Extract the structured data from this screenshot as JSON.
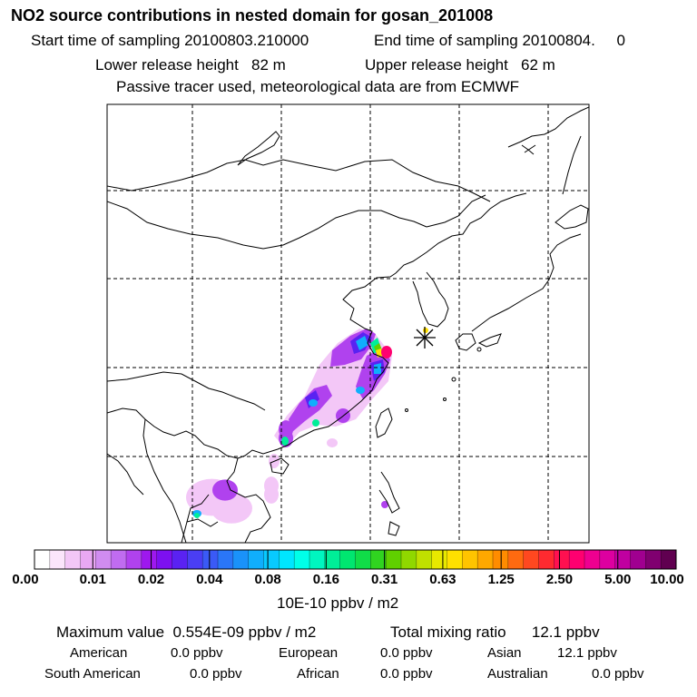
{
  "header": {
    "title": "NO2 source contributions in nested domain for gosan_201008",
    "start_label": "Start time of sampling 20100803.210000",
    "end_label": "End time of sampling 20100804.     0",
    "lower_height": "Lower release height   82 m",
    "upper_height": "Upper release height   62 m",
    "tracer_note": "Passive tracer used, meteorological data are from ECMWF"
  },
  "colorbar": {
    "tick_labels": [
      "0.00",
      "0.01",
      "0.02",
      "0.04",
      "0.08",
      "0.16",
      "0.31",
      "0.63",
      "1.25",
      "2.50",
      "5.00",
      "10.00"
    ],
    "colors": [
      "#ffffff",
      "#fbe5fb",
      "#f3c7f7",
      "#e9a8f3",
      "#d08cf0",
      "#c06cf0",
      "#b042ee",
      "#9e18ee",
      "#7d10f0",
      "#5a22f2",
      "#4a3ef4",
      "#3a5af6",
      "#2a76f8",
      "#1a92fa",
      "#10aefc",
      "#08caff",
      "#00e6ff",
      "#00ffe8",
      "#00f6c0",
      "#00ee98",
      "#00e670",
      "#10dd48",
      "#30d420",
      "#60d000",
      "#90d800",
      "#c0e000",
      "#e8e800",
      "#ffe000",
      "#ffc400",
      "#ffa800",
      "#ff8c00",
      "#ff6a10",
      "#ff4820",
      "#ff2a30",
      "#ff1050",
      "#ff0070",
      "#ee0090",
      "#dd00a0",
      "#c000a0",
      "#a00090",
      "#800070",
      "#600050"
    ],
    "unit": "10E-10 ppbv / m2"
  },
  "stats": {
    "max_value": "Maximum value  0.554E-09 ppbv / m2",
    "total_mixing_ratio": "Total mixing ratio      12.1 ppbv",
    "american_label": "American",
    "american_value": "0.0 ppbv",
    "european_label": "European",
    "european_value": "0.0 ppbv",
    "asian_label": "Asian",
    "asian_value": "12.1 ppbv",
    "south_american_label": "South American",
    "south_american_value": "0.0 ppbv",
    "african_label": "African",
    "african_value": "0.0 ppbv",
    "australian_label": "Australian",
    "australian_value": "0.0 ppbv"
  },
  "map": {
    "receptor_symbol": "asterisk",
    "plume_levels": [
      {
        "level": 0.01,
        "color": "#f3c7f7"
      },
      {
        "level": 0.02,
        "color": "#b042ee"
      },
      {
        "level": 0.04,
        "color": "#5a22f2"
      },
      {
        "level": 0.08,
        "color": "#10aefc"
      },
      {
        "level": 0.16,
        "color": "#00ee98"
      },
      {
        "level": 0.31,
        "color": "#60d000"
      },
      {
        "level": 0.63,
        "color": "#ffe000"
      },
      {
        "level": 2.5,
        "color": "#ff0070"
      }
    ]
  }
}
